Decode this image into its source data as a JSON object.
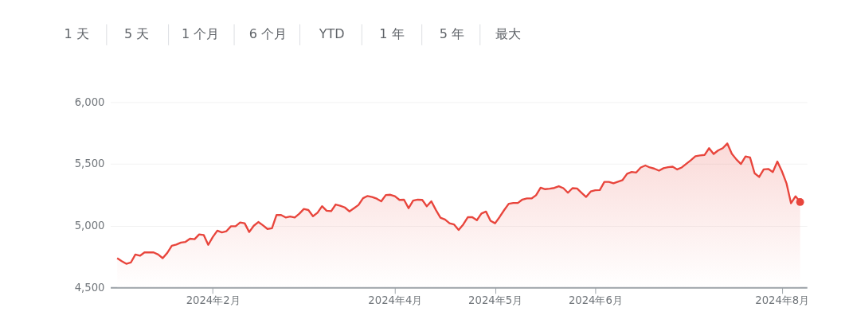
{
  "chart_data": {
    "type": "area",
    "annotations": [
      "1 天",
      "5 天",
      "1 个月",
      "6 个月",
      "YTD",
      "1 年",
      "5 年",
      "最大"
    ],
    "categories": [
      null,
      null,
      null,
      null,
      null,
      null,
      null,
      null,
      null,
      null,
      null,
      null,
      null,
      null,
      null,
      null,
      null,
      null,
      null,
      null,
      null,
      "2024年2月",
      null,
      null,
      null,
      null,
      null,
      null,
      null,
      null,
      null,
      null,
      null,
      null,
      null,
      null,
      null,
      null,
      null,
      null,
      null,
      null,
      null,
      null,
      null,
      null,
      null,
      null,
      null,
      null,
      null,
      null,
      null,
      null,
      null,
      null,
      null,
      null,
      null,
      null,
      null,
      "2024年4月",
      null,
      null,
      null,
      null,
      null,
      null,
      null,
      null,
      null,
      null,
      null,
      null,
      null,
      null,
      null,
      null,
      null,
      null,
      null,
      null,
      null,
      "2024年5月",
      null,
      null,
      null,
      null,
      null,
      null,
      null,
      null,
      null,
      null,
      null,
      null,
      null,
      null,
      null,
      null,
      null,
      null,
      null,
      null,
      null,
      "2024年6月",
      null,
      null,
      null,
      null,
      null,
      null,
      null,
      null,
      null,
      null,
      null,
      null,
      null,
      null,
      null,
      null,
      null,
      null,
      null,
      null,
      null,
      null,
      null,
      null,
      null,
      null,
      null,
      null,
      null,
      null,
      null,
      null,
      null,
      null,
      null,
      null,
      null,
      null,
      null,
      null,
      "2024年8月",
      null,
      null,
      null,
      null
    ],
    "ylim": [
      4500,
      6000
    ],
    "yticks": [
      {
        "value": 4500,
        "label": "4,500"
      },
      {
        "value": 5000,
        "label": "5,000"
      },
      {
        "value": 5500,
        "label": "5,500"
      },
      {
        "value": 6000,
        "label": "6,000"
      }
    ],
    "grid": "y",
    "marker": "none",
    "line_style": "solid",
    "series": [
      {
        "color": "#e8453c",
        "values": [
          4737,
          4713,
          4692,
          4702,
          4767,
          4757,
          4784,
          4784,
          4784,
          4767,
          4737,
          4780,
          4838,
          4848,
          4864,
          4869,
          4895,
          4891,
          4930,
          4925,
          4845,
          4909,
          4960,
          4946,
          4956,
          4996,
          4996,
          5026,
          5020,
          4949,
          5000,
          5030,
          5004,
          4974,
          4980,
          5087,
          5087,
          5067,
          5075,
          5067,
          5097,
          5136,
          5127,
          5077,
          5105,
          5158,
          5121,
          5118,
          5172,
          5162,
          5148,
          5116,
          5142,
          5168,
          5223,
          5241,
          5233,
          5219,
          5198,
          5249,
          5251,
          5239,
          5209,
          5211,
          5142,
          5203,
          5211,
          5209,
          5158,
          5198,
          5128,
          5065,
          5051,
          5020,
          5010,
          4966,
          5010,
          5069,
          5069,
          5045,
          5099,
          5115,
          5040,
          5020,
          5071,
          5127,
          5178,
          5184,
          5184,
          5212,
          5221,
          5221,
          5247,
          5308,
          5296,
          5300,
          5306,
          5320,
          5304,
          5267,
          5304,
          5302,
          5267,
          5233,
          5277,
          5287,
          5289,
          5355,
          5355,
          5344,
          5357,
          5370,
          5421,
          5435,
          5431,
          5472,
          5488,
          5472,
          5462,
          5446,
          5466,
          5474,
          5478,
          5456,
          5472,
          5502,
          5531,
          5563,
          5569,
          5573,
          5628,
          5581,
          5610,
          5628,
          5666,
          5583,
          5537,
          5500,
          5561,
          5553,
          5425,
          5395,
          5456,
          5460,
          5435,
          5520,
          5441,
          5344,
          5182,
          5239,
          5192
        ]
      },
      {
        "type": "scatter",
        "marker": "circle",
        "color": "#e8453c",
        "values": [
          null,
          null,
          null,
          null,
          null,
          null,
          null,
          null,
          null,
          null,
          null,
          null,
          null,
          null,
          null,
          null,
          null,
          null,
          null,
          null,
          null,
          null,
          null,
          null,
          null,
          null,
          null,
          null,
          null,
          null,
          null,
          null,
          null,
          null,
          null,
          null,
          null,
          null,
          null,
          null,
          null,
          null,
          null,
          null,
          null,
          null,
          null,
          null,
          null,
          null,
          null,
          null,
          null,
          null,
          null,
          null,
          null,
          null,
          null,
          null,
          null,
          null,
          null,
          null,
          null,
          null,
          null,
          null,
          null,
          null,
          null,
          null,
          null,
          null,
          null,
          null,
          null,
          null,
          null,
          null,
          null,
          null,
          null,
          null,
          null,
          null,
          null,
          null,
          null,
          null,
          null,
          null,
          null,
          null,
          null,
          null,
          null,
          null,
          null,
          null,
          null,
          null,
          null,
          null,
          null,
          null,
          null,
          null,
          null,
          null,
          null,
          null,
          null,
          null,
          null,
          null,
          null,
          null,
          null,
          null,
          null,
          null,
          null,
          null,
          null,
          null,
          null,
          null,
          null,
          null,
          null,
          null,
          null,
          null,
          null,
          null,
          null,
          null,
          null,
          null,
          null,
          null,
          null,
          null,
          null,
          null,
          null,
          null,
          null,
          null,
          5192
        ]
      }
    ]
  }
}
